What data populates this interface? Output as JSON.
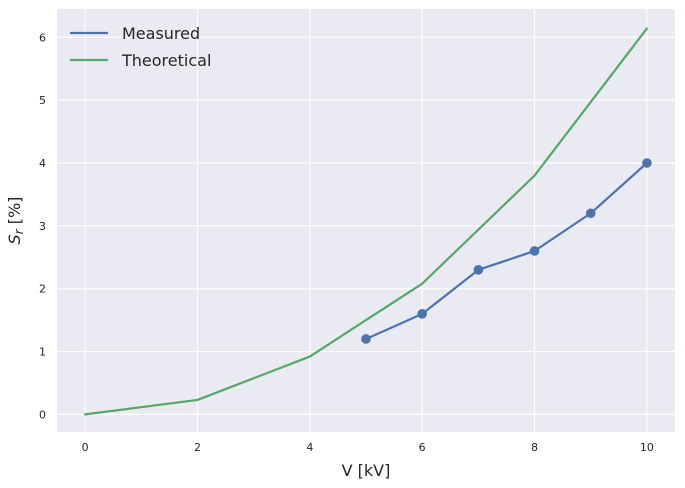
{
  "chart_data": {
    "type": "line",
    "xlabel": "V [kV]",
    "ylabel": "S_r [%]",
    "xlim": [
      -0.5,
      10.5
    ],
    "ylim": [
      -0.28,
      6.45
    ],
    "xticks": [
      0,
      2,
      4,
      6,
      8,
      10
    ],
    "yticks": [
      0,
      1,
      2,
      3,
      4,
      5,
      6
    ],
    "grid": true,
    "legend_position": "top-left",
    "series": [
      {
        "name": "Measured",
        "color": "#4c72b0",
        "marker": "circle",
        "x": [
          5,
          6,
          7,
          8,
          9,
          10
        ],
        "y": [
          1.2,
          1.6,
          2.3,
          2.6,
          3.2,
          4.0
        ]
      },
      {
        "name": "Theoretical",
        "color": "#55a868",
        "marker": "none",
        "x": [
          0,
          2,
          4,
          6,
          8,
          10
        ],
        "y": [
          0.0,
          0.23,
          0.92,
          2.08,
          3.8,
          6.14
        ]
      }
    ]
  },
  "colors": {
    "plot_background": "#eaeaf2",
    "grid": "#ffffff",
    "text": "#262626"
  }
}
